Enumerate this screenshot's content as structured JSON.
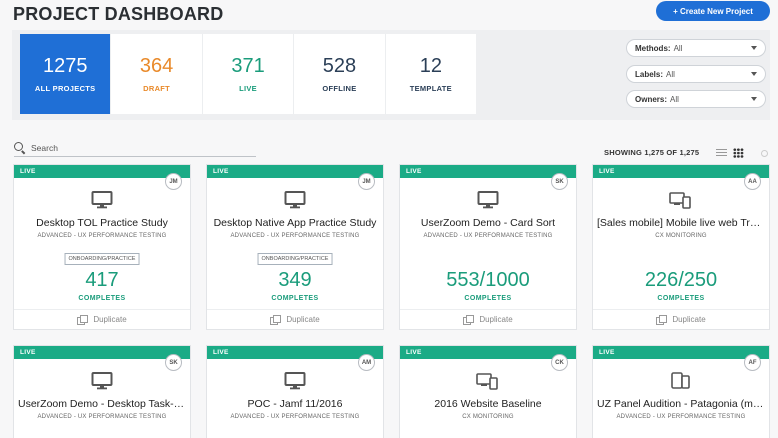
{
  "header": {
    "title": "PROJECT DASHBOARD",
    "create_label": "+ Create New Project"
  },
  "stats": [
    {
      "value": "1275",
      "label": "ALL PROJECTS",
      "color": "#ffffff"
    },
    {
      "value": "364",
      "label": "DRAFT",
      "color": "#e98a2b"
    },
    {
      "value": "371",
      "label": "LIVE",
      "color": "#1a9c7b"
    },
    {
      "value": "528",
      "label": "OFFLINE",
      "color": "#2b3f57"
    },
    {
      "value": "12",
      "label": "TEMPLATE",
      "color": "#2b3f57"
    }
  ],
  "filters": [
    {
      "label": "Methods:",
      "value": "All"
    },
    {
      "label": "Labels:",
      "value": "All"
    },
    {
      "label": "Owners:",
      "value": "All"
    }
  ],
  "search": {
    "placeholder": "Search"
  },
  "showing": "SHOWING 1,275 OF 1,275",
  "colors": {
    "accent": "#1f6fd6",
    "live": "#1bab86"
  },
  "cards": [
    {
      "status": "LIVE",
      "avatar": "JM",
      "icon": "desktop-icon",
      "title": "Desktop TOL Practice Study",
      "subtitle": "ADVANCED - UX PERFORMANCE TESTING",
      "tag": "ONBOARDING/PRACTICE",
      "count": "417",
      "count_label": "COMPLETES",
      "action": "Duplicate"
    },
    {
      "status": "LIVE",
      "avatar": "JM",
      "icon": "desktop-icon",
      "title": "Desktop Native App Practice Study",
      "subtitle": "ADVANCED - UX PERFORMANCE TESTING",
      "tag": "ONBOARDING/PRACTICE",
      "count": "349",
      "count_label": "COMPLETES",
      "action": "Duplicate"
    },
    {
      "status": "LIVE",
      "avatar": "SK",
      "icon": "desktop-icon",
      "title": "UserZoom Demo - Card Sort",
      "subtitle": "ADVANCED - UX PERFORMANCE TESTING",
      "tag": "",
      "count": "553/1000",
      "count_label": "COMPLETES",
      "action": "Duplicate"
    },
    {
      "status": "LIVE",
      "avatar": "AA",
      "icon": "multi-device-icon",
      "title": "[Sales mobile] Mobile live web True...",
      "subtitle": "CX MONITORING",
      "tag": "",
      "count": "226/250",
      "count_label": "COMPLETES",
      "action": "Duplicate"
    },
    {
      "status": "LIVE",
      "avatar": "SK",
      "icon": "desktop-icon",
      "title": "UserZoom Demo - Desktop Task-B...",
      "subtitle": "ADVANCED - UX PERFORMANCE TESTING"
    },
    {
      "status": "LIVE",
      "avatar": "AM",
      "icon": "desktop-icon",
      "title": "POC - Jamf 11/2016",
      "subtitle": "ADVANCED - UX PERFORMANCE TESTING"
    },
    {
      "status": "LIVE",
      "avatar": "CK",
      "icon": "multi-device-icon",
      "title": "2016 Website Baseline",
      "subtitle": "CX MONITORING"
    },
    {
      "status": "LIVE",
      "avatar": "AF",
      "icon": "mobile-tablet-icon",
      "title": "UZ Panel Audition - Patagonia (mo...",
      "subtitle": "ADVANCED - UX PERFORMANCE TESTING"
    }
  ]
}
